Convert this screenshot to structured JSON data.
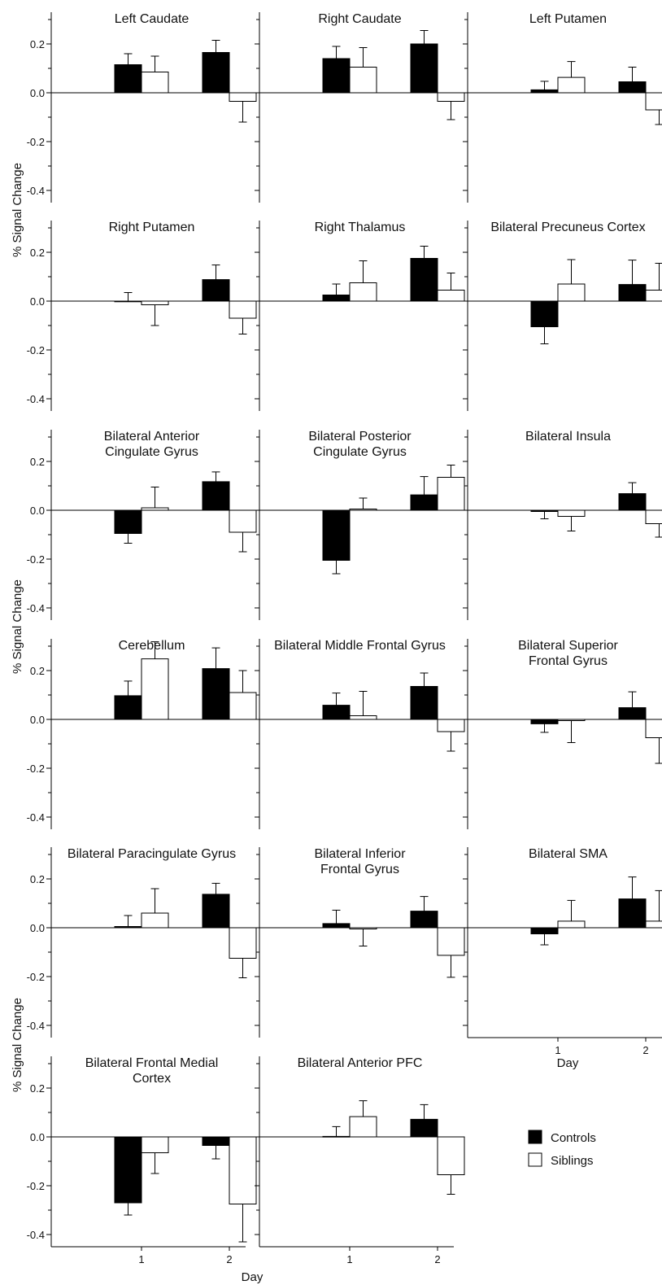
{
  "figure": {
    "ylabel": "% Signal Change",
    "xlabel": "Day",
    "legend": {
      "placement": "bottom-right",
      "entries": [
        {
          "name": "Controls",
          "color": "#000000"
        },
        {
          "name": "Siblings",
          "color": "#ffffff"
        }
      ]
    },
    "colors": {
      "controls": "#000000",
      "siblings": "#ffffff",
      "axis": "#000000"
    }
  },
  "chart_data": [
    {
      "type": "bar",
      "title": [
        "Left Caudate"
      ],
      "categories": [
        "1",
        "2"
      ],
      "ylim": [
        -0.45,
        0.33
      ],
      "yticks": [
        "0.2",
        "0.0",
        "-0.2",
        "-0.4"
      ],
      "series": [
        {
          "name": "Controls",
          "values": [
            0.115,
            0.165
          ],
          "errors": [
            0.045,
            0.05
          ]
        },
        {
          "name": "Siblings",
          "values": [
            0.085,
            -0.035
          ],
          "errors": [
            0.065,
            0.085
          ]
        }
      ]
    },
    {
      "type": "bar",
      "title": [
        "Right Caudate"
      ],
      "categories": [
        "1",
        "2"
      ],
      "ylim": [
        -0.45,
        0.33
      ],
      "yticks": [],
      "series": [
        {
          "name": "Controls",
          "values": [
            0.14,
            0.2
          ],
          "errors": [
            0.05,
            0.055
          ]
        },
        {
          "name": "Siblings",
          "values": [
            0.105,
            -0.035
          ],
          "errors": [
            0.08,
            0.075
          ]
        }
      ]
    },
    {
      "type": "bar",
      "title": [
        "Left Putamen"
      ],
      "categories": [
        "1",
        "2"
      ],
      "ylim": [
        -0.45,
        0.33
      ],
      "yticks": [],
      "series": [
        {
          "name": "Controls",
          "values": [
            0.012,
            0.045
          ],
          "errors": [
            0.035,
            0.06
          ]
        },
        {
          "name": "Siblings",
          "values": [
            0.063,
            -0.07
          ],
          "errors": [
            0.065,
            0.06
          ]
        }
      ]
    },
    {
      "type": "bar",
      "title": [
        "Right Putamen"
      ],
      "categories": [
        "1",
        "2"
      ],
      "ylim": [
        -0.45,
        0.33
      ],
      "yticks": [
        "0.2",
        "0.0",
        "-0.2",
        "-0.4"
      ],
      "series": [
        {
          "name": "Controls",
          "values": [
            0.0,
            0.088
          ],
          "errors": [
            0.035,
            0.06
          ]
        },
        {
          "name": "Siblings",
          "values": [
            -0.015,
            -0.07
          ],
          "errors": [
            0.085,
            0.065
          ]
        }
      ]
    },
    {
      "type": "bar",
      "title": [
        "Right Thalamus"
      ],
      "categories": [
        "1",
        "2"
      ],
      "ylim": [
        -0.45,
        0.33
      ],
      "yticks": [],
      "series": [
        {
          "name": "Controls",
          "values": [
            0.025,
            0.175
          ],
          "errors": [
            0.045,
            0.05
          ]
        },
        {
          "name": "Siblings",
          "values": [
            0.075,
            0.045
          ],
          "errors": [
            0.09,
            0.07
          ]
        }
      ]
    },
    {
      "type": "bar",
      "title": [
        "Bilateral Precuneus Cortex"
      ],
      "categories": [
        "1",
        "2"
      ],
      "ylim": [
        -0.45,
        0.33
      ],
      "yticks": [],
      "series": [
        {
          "name": "Controls",
          "values": [
            -0.105,
            0.068
          ],
          "errors": [
            0.07,
            0.1
          ]
        },
        {
          "name": "Siblings",
          "values": [
            0.07,
            0.045
          ],
          "errors": [
            0.1,
            0.11
          ]
        }
      ]
    },
    {
      "type": "bar",
      "title": [
        "Bilateral Anterior",
        "Cingulate Gyrus"
      ],
      "categories": [
        "1",
        "2"
      ],
      "ylim": [
        -0.45,
        0.33
      ],
      "yticks": [
        "0.2",
        "0.0",
        "-0.2",
        "-0.4"
      ],
      "series": [
        {
          "name": "Controls",
          "values": [
            -0.095,
            0.117
          ],
          "errors": [
            0.04,
            0.04
          ]
        },
        {
          "name": "Siblings",
          "values": [
            0.01,
            -0.09
          ],
          "errors": [
            0.085,
            0.08
          ]
        }
      ]
    },
    {
      "type": "bar",
      "title": [
        "Bilateral Posterior",
        "Cingulate Gyrus"
      ],
      "categories": [
        "1",
        "2"
      ],
      "ylim": [
        -0.45,
        0.33
      ],
      "yticks": [],
      "series": [
        {
          "name": "Controls",
          "values": [
            -0.205,
            0.063
          ],
          "errors": [
            0.055,
            0.075
          ]
        },
        {
          "name": "Siblings",
          "values": [
            0.005,
            0.135
          ],
          "errors": [
            0.045,
            0.05
          ]
        }
      ]
    },
    {
      "type": "bar",
      "title": [
        "Bilateral Insula"
      ],
      "categories": [
        "1",
        "2"
      ],
      "ylim": [
        -0.45,
        0.33
      ],
      "yticks": [],
      "series": [
        {
          "name": "Controls",
          "values": [
            -0.005,
            0.068
          ],
          "errors": [
            0.03,
            0.045
          ]
        },
        {
          "name": "Siblings",
          "values": [
            -0.025,
            -0.055
          ],
          "errors": [
            0.06,
            0.055
          ]
        }
      ]
    },
    {
      "type": "bar",
      "title": [
        "Cerebellum"
      ],
      "categories": [
        "1",
        "2"
      ],
      "ylim": [
        -0.45,
        0.33
      ],
      "yticks": [
        "0.2",
        "0.0",
        "-0.2",
        "-0.4"
      ],
      "series": [
        {
          "name": "Controls",
          "values": [
            0.097,
            0.208
          ],
          "errors": [
            0.06,
            0.085
          ]
        },
        {
          "name": "Siblings",
          "values": [
            0.248,
            0.11
          ],
          "errors": [
            0.07,
            0.09
          ]
        }
      ]
    },
    {
      "type": "bar",
      "title": [
        "Bilateral Middle Frontal Gyrus"
      ],
      "categories": [
        "1",
        "2"
      ],
      "ylim": [
        -0.45,
        0.33
      ],
      "yticks": [],
      "series": [
        {
          "name": "Controls",
          "values": [
            0.058,
            0.135
          ],
          "errors": [
            0.05,
            0.055
          ]
        },
        {
          "name": "Siblings",
          "values": [
            0.015,
            -0.05
          ],
          "errors": [
            0.1,
            0.08
          ]
        }
      ]
    },
    {
      "type": "bar",
      "title": [
        "Bilateral Superior",
        "Frontal Gyrus"
      ],
      "categories": [
        "1",
        "2"
      ],
      "ylim": [
        -0.45,
        0.33
      ],
      "yticks": [],
      "series": [
        {
          "name": "Controls",
          "values": [
            -0.018,
            0.048
          ],
          "errors": [
            0.035,
            0.065
          ]
        },
        {
          "name": "Siblings",
          "values": [
            -0.005,
            -0.075
          ],
          "errors": [
            0.09,
            0.105
          ]
        }
      ]
    },
    {
      "type": "bar",
      "title": [
        "Bilateral Paracingulate Gyrus"
      ],
      "categories": [
        "1",
        "2"
      ],
      "ylim": [
        -0.45,
        0.33
      ],
      "yticks": [
        "0.2",
        "0.0",
        "-0.2",
        "-0.4"
      ],
      "series": [
        {
          "name": "Controls",
          "values": [
            0.005,
            0.137
          ],
          "errors": [
            0.045,
            0.045
          ]
        },
        {
          "name": "Siblings",
          "values": [
            0.06,
            -0.125
          ],
          "errors": [
            0.1,
            0.08
          ]
        }
      ]
    },
    {
      "type": "bar",
      "title": [
        "Bilateral Inferior",
        "Frontal Gyrus"
      ],
      "categories": [
        "1",
        "2"
      ],
      "ylim": [
        -0.45,
        0.33
      ],
      "yticks": [],
      "series": [
        {
          "name": "Controls",
          "values": [
            0.017,
            0.068
          ],
          "errors": [
            0.055,
            0.06
          ]
        },
        {
          "name": "Siblings",
          "values": [
            -0.005,
            -0.113
          ],
          "errors": [
            0.07,
            0.09
          ]
        }
      ]
    },
    {
      "type": "bar",
      "title": [
        "Bilateral SMA"
      ],
      "categories": [
        "1",
        "2"
      ],
      "ylim": [
        -0.45,
        0.33
      ],
      "yticks": [],
      "xticks": [
        "1",
        "2"
      ],
      "xlabel": "Day",
      "series": [
        {
          "name": "Controls",
          "values": [
            -0.025,
            0.118
          ],
          "errors": [
            0.045,
            0.09
          ]
        },
        {
          "name": "Siblings",
          "values": [
            0.027,
            0.027
          ],
          "errors": [
            0.085,
            0.125
          ]
        }
      ]
    },
    {
      "type": "bar",
      "title": [
        "Bilateral Frontal Medial",
        "Cortex"
      ],
      "categories": [
        "1",
        "2"
      ],
      "ylim": [
        -0.45,
        0.33
      ],
      "yticks": [
        "0.2",
        "0.0",
        "-0.2",
        "-0.4"
      ],
      "xticks": [
        "1",
        "2"
      ],
      "series": [
        {
          "name": "Controls",
          "values": [
            -0.27,
            -0.035
          ],
          "errors": [
            0.05,
            0.055
          ]
        },
        {
          "name": "Siblings",
          "values": [
            -0.065,
            -0.275
          ],
          "errors": [
            0.085,
            0.155
          ]
        }
      ]
    },
    {
      "type": "bar",
      "title": [
        "Bilateral Anterior PFC"
      ],
      "categories": [
        "1",
        "2"
      ],
      "ylim": [
        -0.45,
        0.33
      ],
      "yticks": [],
      "xticks": [
        "1",
        "2"
      ],
      "series": [
        {
          "name": "Controls",
          "values": [
            0.002,
            0.072
          ],
          "errors": [
            0.04,
            0.06
          ]
        },
        {
          "name": "Siblings",
          "values": [
            0.083,
            -0.155
          ],
          "errors": [
            0.065,
            0.08
          ]
        }
      ]
    }
  ]
}
